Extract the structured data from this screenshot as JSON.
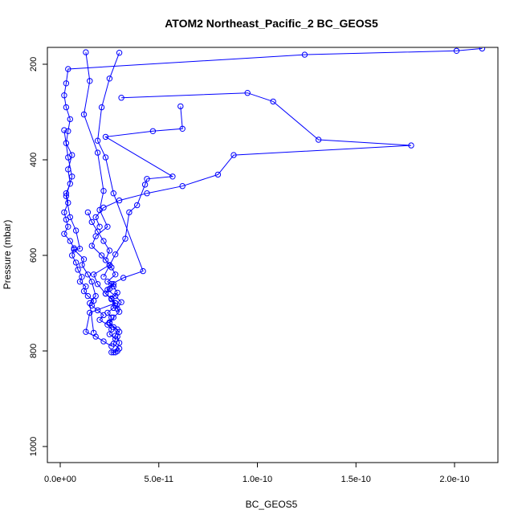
{
  "chart_data": {
    "type": "scatter",
    "title": "ATOM2 Northeast_Pacific_2 BC_GEOS5",
    "xlabel": "BC_GEOS5",
    "ylabel": "Pressure (mbar)",
    "xlim": [
      0,
      2.2e-10
    ],
    "ylim": [
      1035,
      158
    ],
    "y_reversed": true,
    "x_ticks": [
      0,
      5e-11,
      1e-10,
      1.5e-10,
      2e-10
    ],
    "x_tick_labels": [
      "0.0e+00",
      "5.0e-11",
      "1.0e-10",
      "1.5e-10",
      "2.0e-10"
    ],
    "y_ticks": [
      200,
      400,
      600,
      800,
      1000
    ],
    "y_tick_labels": [
      "200",
      "400",
      "600",
      "800",
      "1000"
    ],
    "series_color": "#0000ff",
    "marker": "open-circle",
    "connected": true,
    "grid": false,
    "series": [
      {
        "x": [
          2.14e-10,
          2.01e-10,
          1.24e-10,
          4e-12,
          3e-12,
          2e-12,
          3e-12,
          5e-12,
          4e-12,
          3e-12,
          6e-12,
          4e-12,
          5e-12,
          3e-12,
          4e-12,
          2e-12,
          3e-12,
          4e-12,
          2e-12,
          5e-12,
          7e-12,
          6e-12,
          8e-12,
          9e-12,
          1.1e-11,
          1e-11,
          1.3e-11,
          1.2e-11,
          1.4e-11,
          1.7e-11,
          1.6e-11,
          1.9e-11,
          2.2e-11,
          2e-11,
          2.4e-11,
          2.6e-11,
          2.5e-11,
          2.8e-11,
          2.7e-11,
          3e-11,
          2.9e-11,
          2.7e-11,
          2.6e-11,
          2.8e-11,
          3e-11,
          2.9e-11,
          3e-11,
          2.7e-11,
          2.5e-11,
          2.6e-11,
          2.4e-11,
          2.7e-11,
          2.8e-11,
          2.6e-11,
          2.3e-11,
          2.5e-11,
          2.7e-11
        ],
        "y": [
          167,
          172,
          180,
          210,
          240,
          265,
          290,
          315,
          340,
          365,
          390,
          420,
          450,
          470,
          490,
          510,
          525,
          540,
          555,
          570,
          585,
          600,
          615,
          630,
          645,
          655,
          665,
          675,
          685,
          695,
          705,
          715,
          725,
          735,
          745,
          755,
          765,
          775,
          785,
          795,
          800,
          803,
          803,
          803,
          783,
          770,
          760,
          750,
          740,
          730,
          720,
          710,
          700,
          690,
          680,
          670,
          660
        ]
      },
      {
        "x": [
          1.3e-11,
          1.5e-11,
          1.2e-11,
          1.9e-11,
          2.2e-11,
          2e-11,
          2.4e-11,
          1.8e-11,
          1.6e-11,
          2.1e-11,
          2.5e-11,
          1.7e-11,
          1.9e-11,
          2.3e-11,
          2.8e-11,
          1.5e-11,
          1.3e-11,
          1.8e-11,
          2.2e-11,
          2.6e-11
        ],
        "y": [
          175,
          235,
          305,
          385,
          465,
          505,
          540,
          560,
          580,
          600,
          620,
          640,
          660,
          680,
          700,
          720,
          760,
          770,
          780,
          790
        ]
      },
      {
        "x": [
          3.1e-11,
          9.5e-11,
          1.08e-10,
          1.31e-10,
          1.78e-10,
          8.8e-11,
          8e-11,
          6.2e-11,
          4.4e-11,
          3e-11,
          2.2e-11,
          1.8e-11,
          2e-11
        ],
        "y": [
          270,
          260,
          278,
          358,
          370,
          390,
          431,
          455,
          470,
          485,
          500,
          520,
          540
        ]
      },
      {
        "x": [
          6.1e-11,
          6.2e-11,
          4.7e-11,
          2.3e-11,
          5.7e-11,
          4.4e-11,
          4.3e-11,
          3.9e-11,
          3.5e-11,
          3.3e-11,
          2.8e-11,
          2.5e-11,
          2.2e-11
        ],
        "y": [
          288,
          335,
          340,
          352,
          435,
          440,
          452,
          495,
          510,
          565,
          598,
          621,
          645
        ]
      },
      {
        "x": [
          3e-11,
          2.5e-11,
          2.1e-11,
          1.9e-11,
          2.3e-11,
          2.7e-11,
          4.2e-11,
          3.2e-11,
          2.6e-11,
          2.4e-11,
          2.8e-11,
          3.1e-11,
          2.9e-11
        ],
        "y": [
          176,
          230,
          290,
          360,
          395,
          470,
          633,
          647,
          660,
          672,
          685,
          698,
          712
        ]
      },
      {
        "x": [
          2e-12,
          4e-12,
          6e-12,
          3e-12,
          5e-12,
          8e-12,
          1e-11,
          7e-12,
          1.2e-11,
          1.1e-11,
          1.4e-11,
          1.6e-11,
          1.8e-11,
          1.5e-11,
          1.7e-11
        ],
        "y": [
          338,
          395,
          435,
          476,
          520,
          548,
          586,
          588,
          608,
          620,
          640,
          655,
          685,
          700,
          762
        ]
      },
      {
        "x": [
          1.4e-11,
          1.6e-11,
          1.9e-11,
          2.2e-11,
          2.5e-11,
          2.3e-11,
          2.6e-11,
          2.8e-11,
          2.4e-11,
          2.7e-11,
          2.9e-11,
          2.6e-11,
          2.8e-11,
          3e-11,
          2.7e-11,
          2.5e-11,
          2.9e-11,
          2.8e-11
        ],
        "y": [
          510,
          530,
          550,
          570,
          590,
          610,
          625,
          640,
          655,
          665,
          678,
          692,
          705,
          718,
          730,
          742,
          755,
          768
        ]
      }
    ]
  }
}
